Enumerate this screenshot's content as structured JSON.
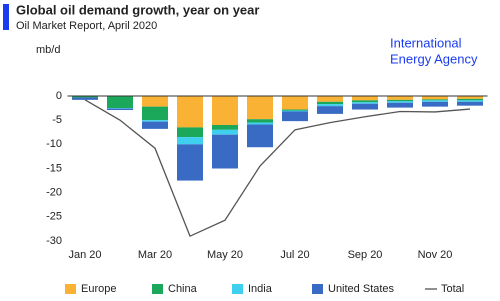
{
  "chart_data": {
    "type": "bar",
    "title": "Global oil demand growth, year on year",
    "subtitle": "Oil Market Report, April 2020",
    "brand": [
      "International",
      "Energy Agency"
    ],
    "y_label": "mb/d",
    "categories": [
      "Jan 20",
      null,
      "Mar 20",
      null,
      "May 20",
      null,
      "Jul 20",
      null,
      "Sep 20",
      null,
      "Nov 20",
      null
    ],
    "series": [
      {
        "name": "Europe",
        "type": "bar",
        "color": "#f9b233",
        "values": [
          0,
          0,
          -2.2,
          -6.5,
          -6,
          -4.8,
          -2.8,
          -1.2,
          -0.9,
          -0.8,
          -0.7,
          -0.6
        ]
      },
      {
        "name": "China",
        "type": "bar",
        "color": "#1ba85a",
        "values": [
          -0.3,
          -2.5,
          -2.8,
          -2,
          -1,
          -0.7,
          -0.2,
          -0.5,
          -0.4,
          -0.3,
          -0.2,
          -0.3
        ]
      },
      {
        "name": "India",
        "type": "bar",
        "color": "#3fd0f0",
        "values": [
          0,
          -0.1,
          -0.3,
          -1.5,
          -1,
          -0.4,
          -0.2,
          -0.4,
          -0.3,
          -0.3,
          -0.3,
          -0.3
        ]
      },
      {
        "name": "United States",
        "type": "bar",
        "color": "#3a6bc4",
        "values": [
          -0.5,
          -0.3,
          -1.5,
          -7.5,
          -7,
          -4.7,
          -2,
          -1.6,
          -1.2,
          -1,
          -1,
          -0.8
        ]
      },
      {
        "name": "Total",
        "type": "line",
        "color": "#555555",
        "values": [
          -0.8,
          -5,
          -10.8,
          -29,
          -25.7,
          -14.5,
          -7,
          -5.5,
          -4.3,
          -3.2,
          -3.3,
          -2.7
        ]
      }
    ],
    "ylim": [
      -30,
      0
    ],
    "yticks": [
      0,
      -5,
      -10,
      -15,
      -20,
      -25,
      -30
    ],
    "grid": false
  }
}
